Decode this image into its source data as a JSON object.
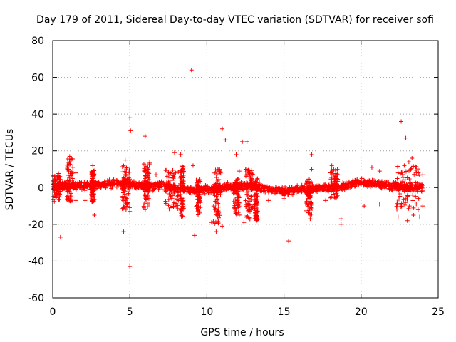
{
  "chart_data": {
    "type": "scatter",
    "title": "Day 179 of 2011, Sidereal Day-to-day VTEC variation (SDTVAR) for receiver sofi",
    "xlabel": "GPS time / hours",
    "ylabel": "SDTVAR / TECUs",
    "xlim": [
      0,
      25
    ],
    "ylim": [
      -60,
      80
    ],
    "xticks": [
      0,
      5,
      10,
      15,
      20,
      25
    ],
    "yticks": [
      -60,
      -40,
      -20,
      0,
      20,
      40,
      60,
      80
    ],
    "grid": true,
    "legend": "none",
    "color": "#ff0000",
    "marker": "plus",
    "band": {
      "x_range": [
        0,
        24
      ],
      "baseline": [
        [
          0,
          0
        ],
        [
          1,
          1
        ],
        [
          2,
          1
        ],
        [
          3,
          1.5
        ],
        [
          4,
          2
        ],
        [
          5,
          2
        ],
        [
          6,
          1
        ],
        [
          7,
          1
        ],
        [
          8,
          0
        ],
        [
          9,
          -1
        ],
        [
          10,
          -1
        ],
        [
          11,
          0
        ],
        [
          12,
          1
        ],
        [
          13,
          1
        ],
        [
          14,
          -1
        ],
        [
          15,
          -2
        ],
        [
          16,
          -1
        ],
        [
          17,
          -1
        ],
        [
          18,
          0
        ],
        [
          19,
          1
        ],
        [
          20,
          3
        ],
        [
          21,
          2
        ],
        [
          22,
          1
        ],
        [
          23,
          0
        ],
        [
          24,
          0
        ]
      ],
      "half_width": 3
    },
    "spread_regions": [
      {
        "x": [
          0,
          0.5
        ],
        "y": [
          -8,
          8
        ]
      },
      {
        "x": [
          0.9,
          1.3
        ],
        "y": [
          -8,
          16
        ]
      },
      {
        "x": [
          2.5,
          2.7
        ],
        "y": [
          -8,
          10
        ]
      },
      {
        "x": [
          4.5,
          5.0
        ],
        "y": [
          -12,
          12
        ]
      },
      {
        "x": [
          5.9,
          6.3
        ],
        "y": [
          -12,
          14
        ]
      },
      {
        "x": [
          7.3,
          8.3
        ],
        "y": [
          -12,
          10
        ]
      },
      {
        "x": [
          8.3,
          8.5
        ],
        "y": [
          -16,
          12
        ]
      },
      {
        "x": [
          9.3,
          9.6
        ],
        "y": [
          -15,
          5
        ]
      },
      {
        "x": [
          10.4,
          10.9
        ],
        "y": [
          -20,
          10
        ]
      },
      {
        "x": [
          11.7,
          12.1
        ],
        "y": [
          -15,
          5
        ]
      },
      {
        "x": [
          12.5,
          13.0
        ],
        "y": [
          -18,
          10
        ]
      },
      {
        "x": [
          13.1,
          13.3
        ],
        "y": [
          -18,
          5
        ]
      },
      {
        "x": [
          16.4,
          16.8
        ],
        "y": [
          -15,
          5
        ]
      },
      {
        "x": [
          18.0,
          18.5
        ],
        "y": [
          -6,
          10
        ]
      },
      {
        "x": [
          22.3,
          23.8
        ],
        "y": [
          -12,
          12
        ]
      }
    ],
    "outliers": [
      [
        9.0,
        64
      ],
      [
        5.0,
        38
      ],
      [
        5.05,
        31
      ],
      [
        6.0,
        28
      ],
      [
        11.0,
        32
      ],
      [
        11.2,
        26
      ],
      [
        12.3,
        25
      ],
      [
        12.6,
        25
      ],
      [
        22.6,
        36
      ],
      [
        22.9,
        27
      ],
      [
        23.3,
        16
      ],
      [
        23.1,
        14
      ],
      [
        0.5,
        -27
      ],
      [
        5.0,
        -43
      ],
      [
        9.2,
        -26
      ],
      [
        15.3,
        -29
      ],
      [
        4.6,
        -24
      ],
      [
        10.6,
        -24
      ],
      [
        10.3,
        -19
      ],
      [
        11.0,
        -21
      ],
      [
        12.4,
        -19
      ],
      [
        18.7,
        -20
      ],
      [
        18.7,
        -17
      ],
      [
        22.4,
        -16
      ],
      [
        23.4,
        -15
      ],
      [
        23.0,
        -18
      ],
      [
        23.8,
        -16
      ],
      [
        16.7,
        -17
      ],
      [
        5.0,
        -13
      ],
      [
        6.0,
        -12
      ],
      [
        8.0,
        -10
      ],
      [
        12.7,
        -12
      ],
      [
        16.8,
        18
      ],
      [
        16.8,
        10
      ],
      [
        18.1,
        12
      ],
      [
        20.7,
        11
      ],
      [
        21.2,
        9
      ],
      [
        22.4,
        8
      ],
      [
        7.9,
        19
      ],
      [
        8.3,
        18
      ],
      [
        9.1,
        12
      ],
      [
        12.1,
        9
      ],
      [
        11.9,
        18
      ],
      [
        12.7,
        8
      ],
      [
        2.6,
        12
      ],
      [
        1.3,
        11
      ],
      [
        1.5,
        8
      ],
      [
        1.1,
        17
      ],
      [
        6.2,
        8
      ],
      [
        6.7,
        7
      ],
      [
        4.7,
        15
      ],
      [
        20.2,
        -10
      ],
      [
        21.2,
        -9
      ],
      [
        1.5,
        -7
      ],
      [
        2.1,
        -7
      ],
      [
        2.7,
        -15
      ],
      [
        4.8,
        -6
      ],
      [
        14.0,
        -7
      ],
      [
        15.0,
        -6
      ],
      [
        17.7,
        -7
      ],
      [
        24.0,
        -10
      ],
      [
        23.7,
        -12
      ],
      [
        22.8,
        12
      ],
      [
        23.6,
        8
      ],
      [
        24.0,
        7
      ]
    ]
  }
}
